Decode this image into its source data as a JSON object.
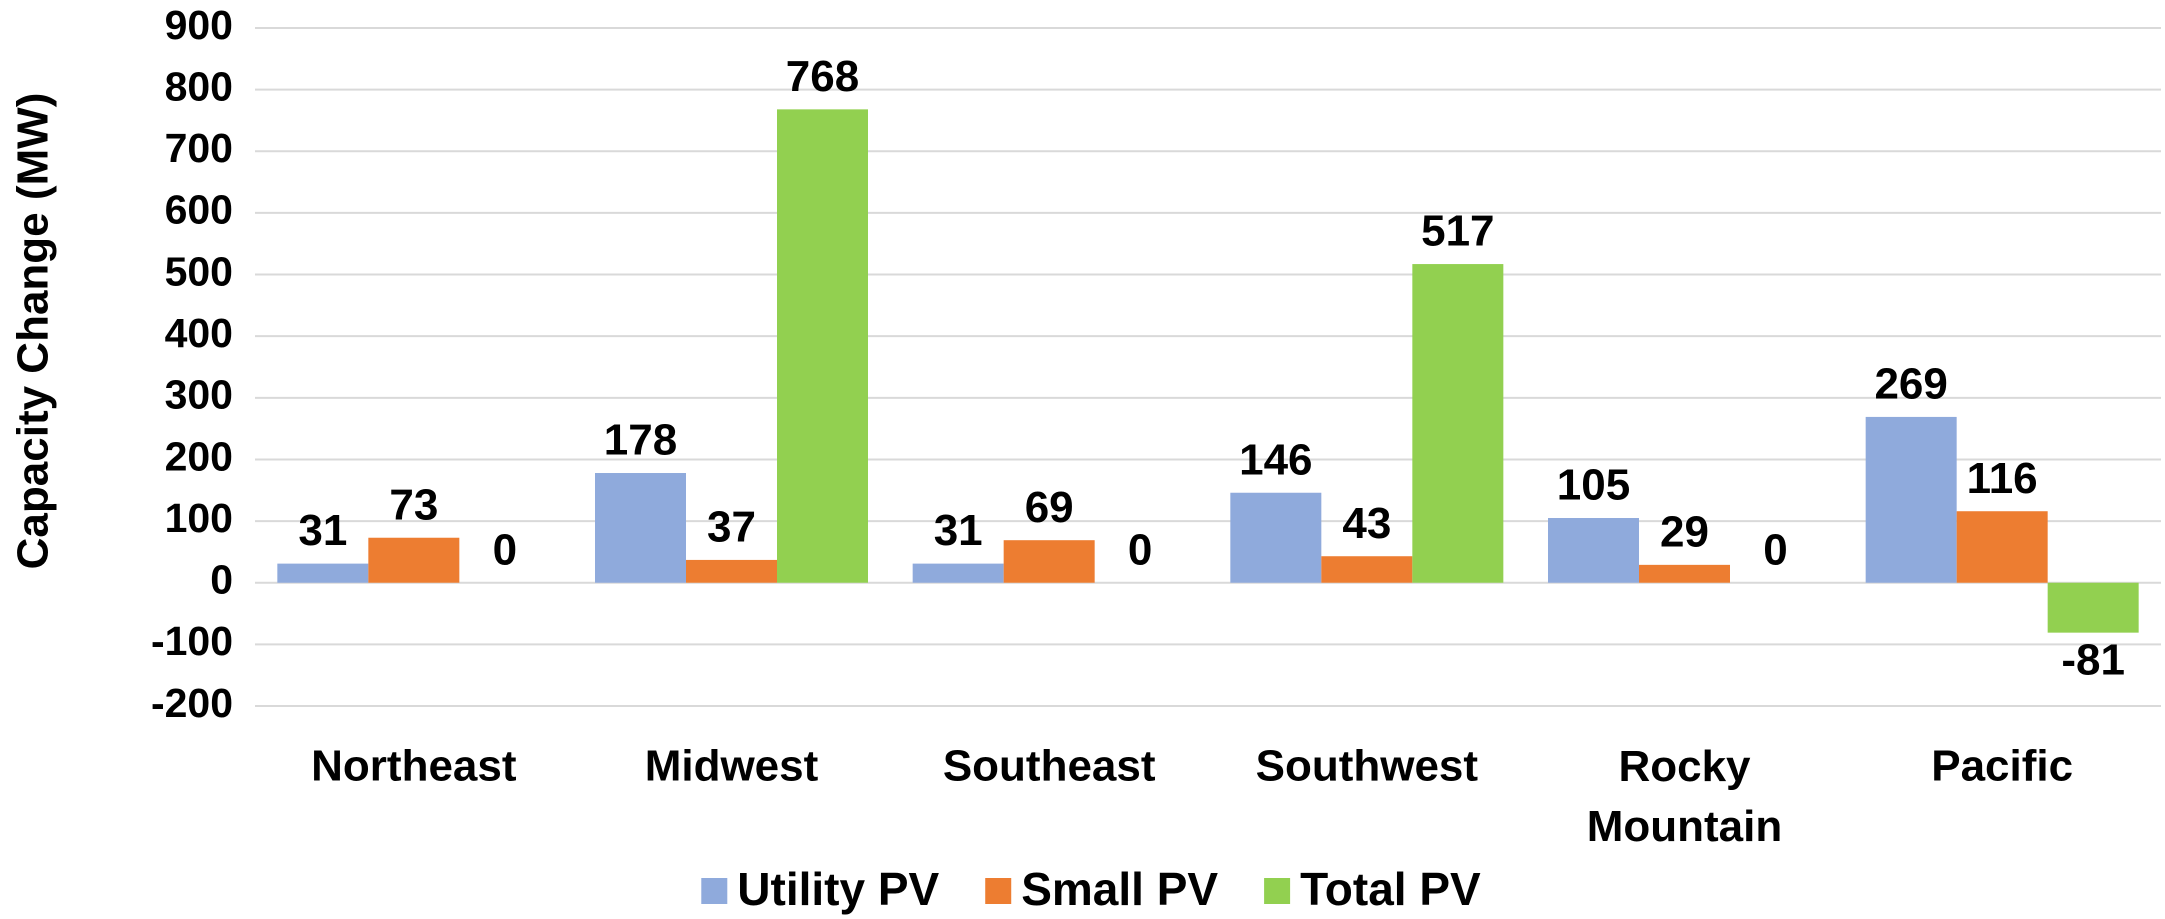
{
  "chart_data": {
    "type": "bar",
    "y_label": "Capacity Change (MW)",
    "categories": [
      "Northeast",
      "Midwest",
      "Southeast",
      "Southwest",
      "Rocky Mountain",
      "Pacific"
    ],
    "series": [
      {
        "name": "Utility PV",
        "color": "#8faadc",
        "values": [
          31,
          178,
          31,
          146,
          105,
          269
        ]
      },
      {
        "name": "Small PV",
        "color": "#ed7d31",
        "values": [
          73,
          37,
          69,
          43,
          29,
          116
        ]
      },
      {
        "name": "Total PV",
        "color": "#92d050",
        "values": [
          0,
          768,
          0,
          517,
          0,
          -81
        ]
      }
    ],
    "ylim": [
      -200,
      900
    ],
    "yticks": [
      -200,
      -100,
      0,
      100,
      200,
      300,
      400,
      500,
      600,
      700,
      800,
      900
    ],
    "grid": true,
    "legend": "bottom"
  }
}
